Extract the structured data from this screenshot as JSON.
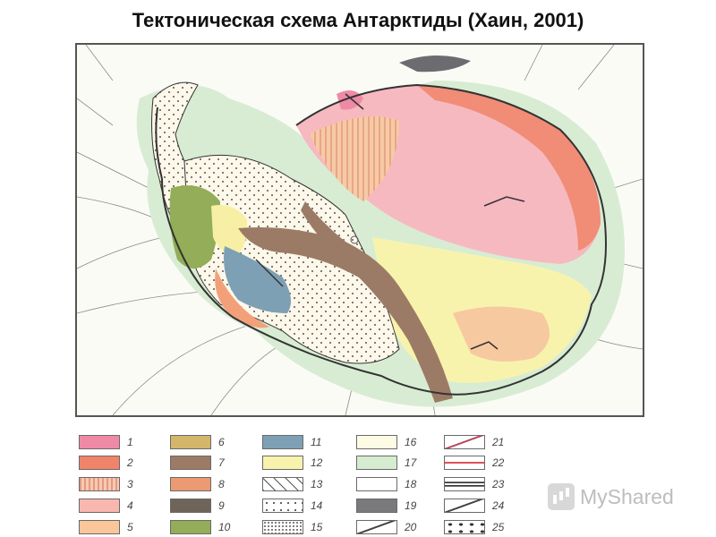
{
  "title": "Тектоническая схема Антарктиды (Хаин, 2001)",
  "map": {
    "icon": "antarctica-tectonic-map"
  },
  "legend": {
    "items": [
      {
        "num": "1",
        "color": "#ef8aa6",
        "pattern": "solid"
      },
      {
        "num": "2",
        "color": "#f08468",
        "pattern": "solid"
      },
      {
        "num": "3",
        "color": "#f7c9b3",
        "pattern": "vstripes"
      },
      {
        "num": "4",
        "color": "#f9b7b0",
        "pattern": "solid"
      },
      {
        "num": "5",
        "color": "#f9c79a",
        "pattern": "solid"
      },
      {
        "num": "6",
        "color": "#d4b66a",
        "pattern": "solid"
      },
      {
        "num": "7",
        "color": "#9c7b66",
        "pattern": "solid"
      },
      {
        "num": "8",
        "color": "#ec9a73",
        "pattern": "solid"
      },
      {
        "num": "9",
        "color": "#6f6458",
        "pattern": "solid"
      },
      {
        "num": "10",
        "color": "#93ad58",
        "pattern": "solid"
      },
      {
        "num": "11",
        "color": "#7ea0b4",
        "pattern": "solid"
      },
      {
        "num": "12",
        "color": "#f8f3ac",
        "pattern": "solid"
      },
      {
        "num": "13",
        "color": "#ffffff",
        "pattern": "ticks"
      },
      {
        "num": "14",
        "color": "#ffffff",
        "pattern": "dots"
      },
      {
        "num": "15",
        "color": "#ffffff",
        "pattern": "dense-dots"
      },
      {
        "num": "16",
        "color": "#fdfbe4",
        "pattern": "solid"
      },
      {
        "num": "17",
        "color": "#d6ecd0",
        "pattern": "solid"
      },
      {
        "num": "18",
        "color": "#ffffff",
        "pattern": "solid"
      },
      {
        "num": "19",
        "color": "#7a7a7c",
        "pattern": "solid"
      },
      {
        "num": "20",
        "color": "#ffffff",
        "pattern": "diagonal-line"
      },
      {
        "num": "21",
        "color": "#ffffff",
        "pattern": "diagonal-line-red"
      },
      {
        "num": "22",
        "color": "#ffffff",
        "pattern": "red-line"
      },
      {
        "num": "23",
        "color": "#ffffff",
        "pattern": "double-line"
      },
      {
        "num": "24",
        "color": "#ffffff",
        "pattern": "diagonal-line"
      },
      {
        "num": "25",
        "color": "#ffffff",
        "pattern": "symbols"
      }
    ]
  },
  "watermark": {
    "text": "MyShared",
    "icon": "myshared-logo-icon"
  }
}
